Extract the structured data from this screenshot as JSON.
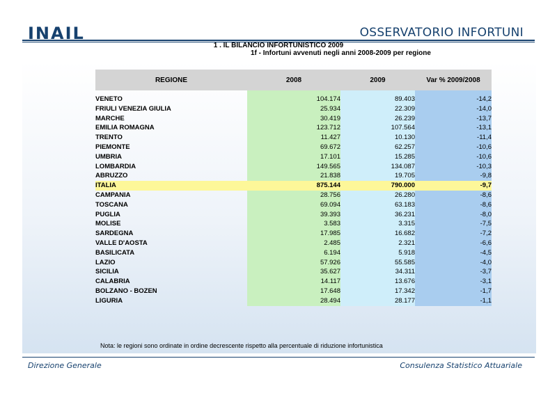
{
  "header": {
    "logo": "INAIL",
    "title": "OSSERVATORIO INFORTUNI"
  },
  "section": {
    "title": "1 . IL BILANCIO INFORTUNISTICO 2009",
    "subtitle": "1f - Infortuni avvenuti negli anni 2008-2009 per regione"
  },
  "table": {
    "headers": [
      "REGIONE",
      "2008",
      "2009",
      "Var % 2009/2008"
    ],
    "rows": [
      {
        "region": "VENETO",
        "v2008": "104.174",
        "v2009": "89.403",
        "var": "-14,2"
      },
      {
        "region": "FRIULI VENEZIA GIULIA",
        "v2008": "25.934",
        "v2009": "22.309",
        "var": "-14,0"
      },
      {
        "region": "MARCHE",
        "v2008": "30.419",
        "v2009": "26.239",
        "var": "-13,7"
      },
      {
        "region": "EMILIA ROMAGNA",
        "v2008": "123.712",
        "v2009": "107.564",
        "var": "-13,1"
      },
      {
        "region": "TRENTO",
        "v2008": "11.427",
        "v2009": "10.130",
        "var": "-11,4"
      },
      {
        "region": "PIEMONTE",
        "v2008": "69.672",
        "v2009": "62.257",
        "var": "-10,6"
      },
      {
        "region": "UMBRIA",
        "v2008": "17.101",
        "v2009": "15.285",
        "var": "-10,6"
      },
      {
        "region": "LOMBARDIA",
        "v2008": "149.565",
        "v2009": "134.087",
        "var": "-10,3"
      },
      {
        "region": "ABRUZZO",
        "v2008": "21.838",
        "v2009": "19.705",
        "var": "-9,8"
      },
      {
        "region": "ITALIA",
        "v2008": "875.144",
        "v2009": "790.000",
        "var": "-9,7",
        "highlight": true
      },
      {
        "region": "CAMPANIA",
        "v2008": "28.756",
        "v2009": "26.280",
        "var": "-8,6"
      },
      {
        "region": "TOSCANA",
        "v2008": "69.094",
        "v2009": "63.183",
        "var": "-8,6"
      },
      {
        "region": "PUGLIA",
        "v2008": "39.393",
        "v2009": "36.231",
        "var": "-8,0"
      },
      {
        "region": "MOLISE",
        "v2008": "3.583",
        "v2009": "3.315",
        "var": "-7,5"
      },
      {
        "region": "SARDEGNA",
        "v2008": "17.985",
        "v2009": "16.682",
        "var": "-7,2"
      },
      {
        "region": "VALLE D'AOSTA",
        "v2008": "2.485",
        "v2009": "2.321",
        "var": "-6,6"
      },
      {
        "region": "BASILICATA",
        "v2008": "6.194",
        "v2009": "5.918",
        "var": "-4,5"
      },
      {
        "region": "LAZIO",
        "v2008": "57.926",
        "v2009": "55.585",
        "var": "-4,0"
      },
      {
        "region": "SICILIA",
        "v2008": "35.627",
        "v2009": "34.311",
        "var": "-3,7"
      },
      {
        "region": "CALABRIA",
        "v2008": "14.117",
        "v2009": "13.676",
        "var": "-3,1"
      },
      {
        "region": "BOLZANO - BOZEN",
        "v2008": "17.648",
        "v2009": "17.342",
        "var": "-1,7"
      },
      {
        "region": "LIGURIA",
        "v2008": "28.494",
        "v2009": "28.177",
        "var": "-1,1"
      }
    ]
  },
  "note": "Nota:  le regioni sono ordinate in ordine decrescente rispetto alla percentuale di riduzione infortunistica",
  "footer": {
    "left": "Direzione Generale",
    "right": "Consulenza Statistico Attuariale"
  },
  "colors": {
    "brand": "#16416e",
    "col2008": "#c9f0bf",
    "col2009": "#cfeefa",
    "colVar": "#a9cdef",
    "highlight": "#fdf799"
  }
}
